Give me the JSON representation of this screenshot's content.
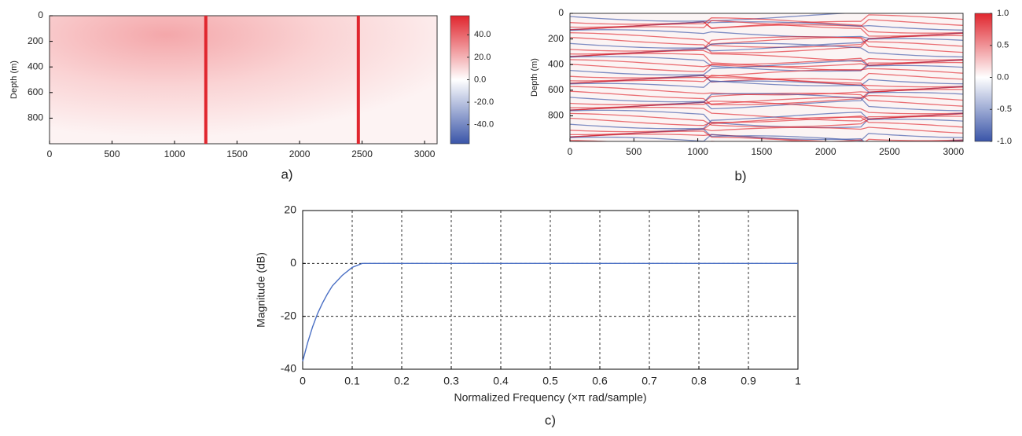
{
  "chart_data": [
    {
      "type": "heatmap",
      "caption": "a)",
      "ylabel": "Depth (m)",
      "xlim": [
        0,
        3100
      ],
      "xticks": [
        0,
        500,
        1000,
        1500,
        2000,
        2500,
        3000
      ],
      "ylim": [
        1000,
        0
      ],
      "yticks": [
        0,
        200,
        400,
        600,
        800
      ],
      "clim": [
        -57,
        57
      ],
      "cticks": [
        {
          "value": 40,
          "label": "40.0"
        },
        {
          "value": 20,
          "label": "20.0"
        },
        {
          "value": 0,
          "label": "0.0"
        },
        {
          "value": -20,
          "label": "-20.0"
        },
        {
          "value": -40,
          "label": "-40.0"
        }
      ],
      "colormap": [
        "#3a55a8",
        "#ffffff",
        "#e0262e"
      ],
      "vlines": [
        1250,
        2470
      ],
      "vline_color": "#e0262e"
    },
    {
      "type": "heatmap",
      "caption": "b)",
      "ylabel": "Depth (m)",
      "xlim": [
        0,
        3075
      ],
      "xticks": [
        0,
        500,
        1000,
        1500,
        2000,
        2500,
        3000
      ],
      "ylim": [
        1000,
        0
      ],
      "yticks": [
        0,
        200,
        400,
        600,
        800
      ],
      "clim": [
        -1,
        1
      ],
      "cticks": [
        {
          "value": 1,
          "label": "1.0"
        },
        {
          "value": 0.5,
          "label": "0.5"
        },
        {
          "value": 0,
          "label": "0.0"
        },
        {
          "value": -0.5,
          "label": "-0.5"
        },
        {
          "value": -1,
          "label": "-1.0"
        }
      ],
      "colormap": [
        "#3a55a8",
        "#ffffff",
        "#e0262e"
      ]
    },
    {
      "type": "line",
      "caption": "c)",
      "xlabel": "Normalized Frequency  (×π rad/sample)",
      "ylabel": "Magnitude (dB)",
      "xlim": [
        0,
        1
      ],
      "xticks": [
        0,
        0.1,
        0.2,
        0.3,
        0.4,
        0.5,
        0.6,
        0.7,
        0.8,
        0.9,
        1
      ],
      "ylim": [
        -40,
        20
      ],
      "yticks": [
        -40,
        -20,
        0,
        20
      ],
      "grid": true,
      "x": [
        0,
        0.01,
        0.02,
        0.03,
        0.04,
        0.05,
        0.06,
        0.08,
        0.1,
        0.12,
        0.15,
        1
      ],
      "series": [
        {
          "color": "#4a6fc4",
          "values": [
            -37,
            -30,
            -24,
            -19,
            -15,
            -11.5,
            -8.5,
            -4.5,
            -1.5,
            0,
            0,
            0
          ]
        }
      ]
    }
  ]
}
